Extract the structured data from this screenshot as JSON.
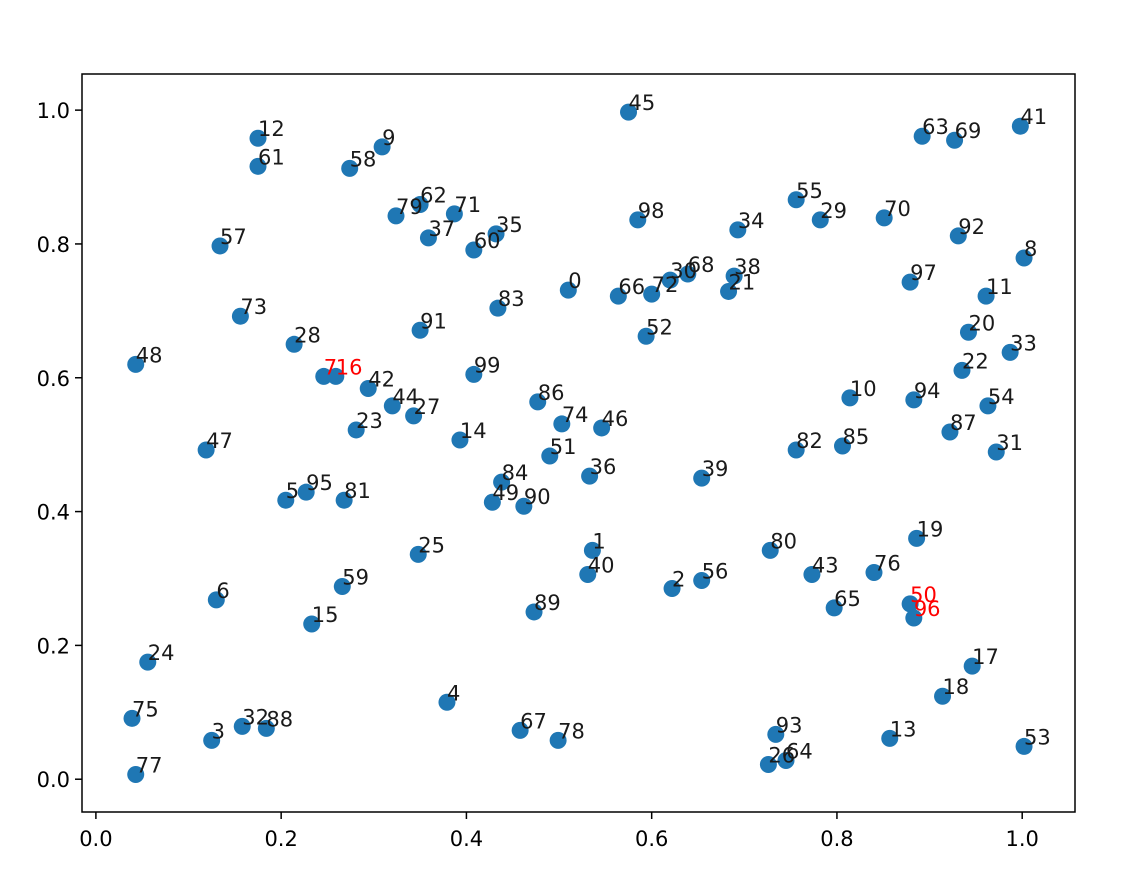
{
  "chart_data": {
    "type": "scatter",
    "x": [
      0.51,
      0.536,
      0.622,
      0.125,
      0.379,
      0.205,
      0.13,
      0.246,
      1.002,
      0.309,
      0.814,
      0.961,
      0.175,
      0.857,
      0.393,
      0.233,
      0.259,
      0.946,
      0.914,
      0.886,
      0.942,
      0.683,
      0.935,
      0.281,
      0.056,
      0.348,
      0.726,
      0.343,
      0.214,
      0.782,
      0.62,
      0.972,
      0.158,
      0.987,
      0.693,
      0.432,
      0.533,
      0.359,
      0.689,
      0.654,
      0.531,
      0.998,
      0.294,
      0.773,
      0.32,
      0.575,
      0.546,
      0.119,
      0.043,
      0.428,
      0.879,
      0.49,
      0.594,
      1.002,
      0.963,
      0.756,
      0.654,
      0.134,
      0.274,
      0.266,
      0.408,
      0.175,
      0.35,
      0.892,
      0.745,
      0.797,
      0.564,
      0.458,
      0.639,
      0.927,
      0.851,
      0.387,
      0.6,
      0.156,
      0.503,
      0.039,
      0.84,
      0.043,
      0.499,
      0.324,
      0.728,
      0.268,
      0.756,
      0.434,
      0.438,
      0.806,
      0.477,
      0.922,
      0.184,
      0.473,
      0.462,
      0.35,
      0.931,
      0.734,
      0.883,
      0.227,
      0.883,
      0.879,
      0.585,
      0.408
    ],
    "values": [
      0.731,
      0.342,
      0.285,
      0.058,
      0.115,
      0.417,
      0.268,
      0.602,
      0.779,
      0.945,
      0.57,
      0.722,
      0.958,
      0.061,
      0.507,
      0.232,
      0.602,
      0.169,
      0.124,
      0.36,
      0.668,
      0.729,
      0.611,
      0.522,
      0.175,
      0.336,
      0.022,
      0.543,
      0.65,
      0.836,
      0.746,
      0.489,
      0.079,
      0.638,
      0.821,
      0.815,
      0.453,
      0.809,
      0.752,
      0.45,
      0.306,
      0.976,
      0.584,
      0.306,
      0.558,
      0.997,
      0.525,
      0.492,
      0.62,
      0.414,
      0.262,
      0.483,
      0.662,
      0.049,
      0.558,
      0.866,
      0.297,
      0.797,
      0.913,
      0.288,
      0.791,
      0.916,
      0.859,
      0.961,
      0.028,
      0.256,
      0.722,
      0.073,
      0.755,
      0.955,
      0.839,
      0.845,
      0.725,
      0.692,
      0.531,
      0.091,
      0.309,
      0.007,
      0.058,
      0.842,
      0.342,
      0.417,
      0.492,
      0.704,
      0.444,
      0.498,
      0.564,
      0.519,
      0.076,
      0.25,
      0.408,
      0.671,
      0.812,
      0.067,
      0.567,
      0.429,
      0.241,
      0.743,
      0.836,
      0.605
    ],
    "labels": [
      0,
      1,
      2,
      3,
      4,
      5,
      6,
      7,
      8,
      9,
      10,
      11,
      12,
      13,
      14,
      15,
      16,
      17,
      18,
      19,
      20,
      21,
      22,
      23,
      24,
      25,
      26,
      27,
      28,
      29,
      30,
      31,
      32,
      33,
      34,
      35,
      36,
      37,
      38,
      39,
      40,
      41,
      42,
      43,
      44,
      45,
      46,
      47,
      48,
      49,
      50,
      51,
      52,
      53,
      54,
      55,
      56,
      57,
      58,
      59,
      60,
      61,
      62,
      63,
      64,
      65,
      66,
      67,
      68,
      69,
      70,
      71,
      72,
      73,
      74,
      75,
      76,
      77,
      78,
      79,
      80,
      81,
      82,
      83,
      84,
      85,
      86,
      87,
      88,
      89,
      90,
      91,
      92,
      93,
      94,
      95,
      96,
      97,
      98,
      99
    ],
    "color": "#1f77b4",
    "label_color": "#1a1a1a",
    "highlight": {
      "indices": [
        7,
        16,
        50,
        96
      ],
      "color": "#ff0000"
    },
    "xlim": [
      -0.015,
      1.057
    ],
    "ylim": [
      -0.049,
      1.054
    ],
    "xticks": [
      {
        "value": 0,
        "label": "0.0"
      },
      {
        "value": 0.2,
        "label": "0.2"
      },
      {
        "value": 0.4,
        "label": "0.4"
      },
      {
        "value": 0.6,
        "label": "0.6"
      },
      {
        "value": 0.8,
        "label": "0.8"
      },
      {
        "value": 1,
        "label": "1.0"
      }
    ],
    "yticks": [
      {
        "value": 0,
        "label": "0.0"
      },
      {
        "value": 0.2,
        "label": "0.2"
      },
      {
        "value": 0.4,
        "label": "0.4"
      },
      {
        "value": 0.6,
        "label": "0.6"
      },
      {
        "value": 0.8,
        "label": "0.8"
      },
      {
        "value": 1,
        "label": "1.0"
      }
    ]
  }
}
